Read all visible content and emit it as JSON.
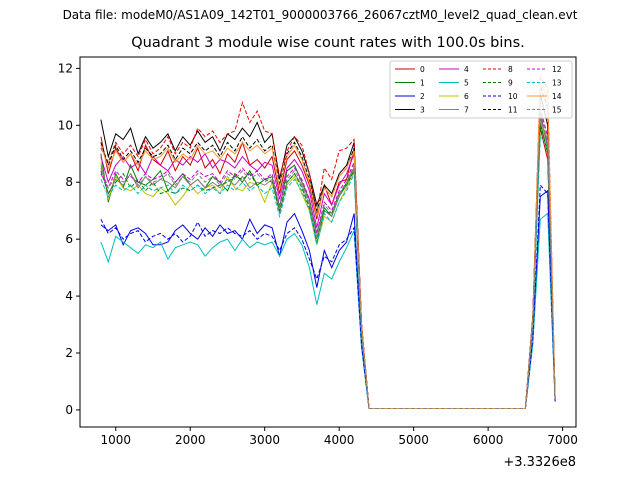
{
  "figure": {
    "suptitle": "Data file: modeM0/AS1A09_142T01_9000003766_26067cztM0_level2_quad_clean.evt",
    "title": "Quadrant 3 module wise count rates with 100.0s bins.",
    "x_offset_label": "+3.3326e8"
  },
  "chart_data": {
    "type": "line",
    "title": "Quadrant 3 module wise count rates with 100.0s bins.",
    "xlabel": "",
    "ylabel": "",
    "x_offset": 333260000,
    "xlim": [
      520,
      7180
    ],
    "ylim": [
      -0.6,
      12.4
    ],
    "xticks": [
      1000,
      2000,
      3000,
      4000,
      5000,
      6000,
      7000
    ],
    "yticks": [
      0,
      2,
      4,
      6,
      8,
      10,
      12
    ],
    "grid": false,
    "legend": {
      "placement": "top-right",
      "columns": 4,
      "entries": [
        "0",
        "1",
        "2",
        "3",
        "4",
        "5",
        "6",
        "7",
        "8",
        "9",
        "10",
        "11",
        "12",
        "13",
        "14",
        "15"
      ]
    },
    "x": [
      800,
      900,
      1000,
      1100,
      1200,
      1300,
      1400,
      1500,
      1600,
      1700,
      1800,
      1900,
      2000,
      2100,
      2200,
      2300,
      2400,
      2500,
      2600,
      2700,
      2800,
      2900,
      3000,
      3100,
      3200,
      3300,
      3400,
      3500,
      3600,
      3700,
      3800,
      3900,
      4000,
      4100,
      4200,
      4300,
      4400,
      4500,
      4600,
      4700,
      4800,
      4900,
      5000,
      5100,
      5200,
      5300,
      5400,
      5500,
      5600,
      5700,
      5800,
      5900,
      6000,
      6100,
      6200,
      6300,
      6400,
      6500,
      6600,
      6700,
      6800,
      6900
    ],
    "series": [
      {
        "name": "0",
        "color": "#cc0000",
        "dash": "solid",
        "values": [
          9.6,
          8.3,
          9.2,
          8.7,
          9.0,
          8.4,
          9.3,
          8.8,
          8.6,
          9.1,
          8.4,
          8.9,
          8.6,
          9.2,
          8.5,
          8.8,
          8.3,
          9.0,
          8.7,
          9.4,
          8.6,
          8.8,
          8.5,
          8.9,
          7.6,
          8.8,
          9.1,
          8.6,
          7.9,
          6.7,
          7.9,
          7.2,
          8.0,
          8.1,
          9.2,
          3.0,
          0.05,
          0.05,
          0.05,
          0.05,
          0.05,
          0.05,
          0.05,
          0.05,
          0.05,
          0.05,
          0.05,
          0.05,
          0.05,
          0.05,
          0.05,
          0.05,
          0.05,
          0.05,
          0.05,
          0.05,
          0.05,
          0.05,
          3.2,
          9.9,
          8.8,
          0.4
        ]
      },
      {
        "name": "1",
        "color": "#008000",
        "dash": "solid",
        "values": [
          9.0,
          7.3,
          8.3,
          7.8,
          8.6,
          8.0,
          7.9,
          8.1,
          8.4,
          7.7,
          8.0,
          8.3,
          7.9,
          8.1,
          7.8,
          8.2,
          8.0,
          7.7,
          8.3,
          8.0,
          8.4,
          7.9,
          8.1,
          8.2,
          7.1,
          8.4,
          8.6,
          8.0,
          7.4,
          6.2,
          7.1,
          6.8,
          7.5,
          8.0,
          8.5,
          2.9,
          0.05,
          0.05,
          0.05,
          0.05,
          0.05,
          0.05,
          0.05,
          0.05,
          0.05,
          0.05,
          0.05,
          0.05,
          0.05,
          0.05,
          0.05,
          0.05,
          0.05,
          0.05,
          0.05,
          0.05,
          0.05,
          0.05,
          3.0,
          10.1,
          9.0,
          0.4
        ]
      },
      {
        "name": "2",
        "color": "#0000ee",
        "dash": "solid",
        "values": [
          6.5,
          6.3,
          6.5,
          5.8,
          6.3,
          6.4,
          6.2,
          5.8,
          5.8,
          5.9,
          6.3,
          6.5,
          6.2,
          6.0,
          6.4,
          6.1,
          6.5,
          6.2,
          6.3,
          6.0,
          6.7,
          6.2,
          6.5,
          6.4,
          5.4,
          6.6,
          6.9,
          6.3,
          5.6,
          4.3,
          5.6,
          5.0,
          5.6,
          5.9,
          6.9,
          2.3,
          0.05,
          0.05,
          0.05,
          0.05,
          0.05,
          0.05,
          0.05,
          0.05,
          0.05,
          0.05,
          0.05,
          0.05,
          0.05,
          0.05,
          0.05,
          0.05,
          0.05,
          0.05,
          0.05,
          0.05,
          0.05,
          0.05,
          2.4,
          7.5,
          7.7,
          0.3
        ]
      },
      {
        "name": "3",
        "color": "#000000",
        "dash": "solid",
        "values": [
          10.2,
          8.9,
          9.7,
          9.5,
          9.9,
          9.0,
          9.6,
          9.2,
          9.4,
          9.7,
          9.1,
          9.6,
          9.3,
          9.8,
          9.4,
          9.6,
          9.1,
          9.7,
          9.5,
          9.9,
          9.6,
          10.1,
          9.4,
          9.7,
          8.1,
          9.3,
          9.6,
          9.1,
          8.3,
          7.2,
          7.9,
          7.6,
          8.3,
          8.6,
          9.4,
          3.0,
          0.05,
          0.05,
          0.05,
          0.05,
          0.05,
          0.05,
          0.05,
          0.05,
          0.05,
          0.05,
          0.05,
          0.05,
          0.05,
          0.05,
          0.05,
          0.05,
          0.05,
          0.05,
          0.05,
          0.05,
          0.05,
          0.05,
          3.3,
          11.1,
          10.0,
          0.4
        ]
      },
      {
        "name": "4",
        "color": "#cc00cc",
        "dash": "solid",
        "values": [
          8.9,
          8.0,
          8.6,
          8.9,
          8.5,
          8.7,
          8.3,
          8.9,
          8.6,
          8.4,
          8.8,
          8.6,
          8.9,
          8.7,
          9.0,
          8.5,
          8.8,
          8.7,
          8.5,
          8.9,
          8.6,
          8.4,
          8.7,
          8.6,
          7.4,
          8.5,
          8.8,
          8.4,
          7.7,
          6.4,
          7.6,
          7.2,
          7.9,
          8.3,
          9.0,
          2.9,
          0.05,
          0.05,
          0.05,
          0.05,
          0.05,
          0.05,
          0.05,
          0.05,
          0.05,
          0.05,
          0.05,
          0.05,
          0.05,
          0.05,
          0.05,
          0.05,
          0.05,
          0.05,
          0.05,
          0.05,
          0.05,
          0.05,
          3.1,
          10.4,
          9.3,
          0.4
        ]
      },
      {
        "name": "5",
        "color": "#00bfbf",
        "dash": "solid",
        "values": [
          5.9,
          5.2,
          6.1,
          5.9,
          5.7,
          5.5,
          5.8,
          5.7,
          5.9,
          5.3,
          5.7,
          5.8,
          5.9,
          5.8,
          5.4,
          5.7,
          5.9,
          6.0,
          5.6,
          6.0,
          5.7,
          5.9,
          5.8,
          5.9,
          5.4,
          6.0,
          6.2,
          5.8,
          5.0,
          3.7,
          4.8,
          4.6,
          5.2,
          5.7,
          6.3,
          2.2,
          0.05,
          0.05,
          0.05,
          0.05,
          0.05,
          0.05,
          0.05,
          0.05,
          0.05,
          0.05,
          0.05,
          0.05,
          0.05,
          0.05,
          0.05,
          0.05,
          0.05,
          0.05,
          0.05,
          0.05,
          0.05,
          0.05,
          2.3,
          6.7,
          6.9,
          0.3
        ]
      },
      {
        "name": "6",
        "color": "#bfbf00",
        "dash": "solid",
        "values": [
          8.7,
          7.4,
          8.2,
          7.8,
          7.7,
          7.9,
          7.6,
          7.5,
          7.8,
          7.6,
          7.2,
          7.5,
          7.9,
          7.6,
          7.8,
          7.9,
          7.6,
          8.2,
          7.8,
          7.7,
          8.0,
          7.9,
          7.3,
          8.0,
          7.0,
          7.9,
          8.2,
          7.6,
          7.0,
          5.8,
          6.8,
          6.6,
          7.3,
          7.8,
          8.4,
          2.8,
          0.05,
          0.05,
          0.05,
          0.05,
          0.05,
          0.05,
          0.05,
          0.05,
          0.05,
          0.05,
          0.05,
          0.05,
          0.05,
          0.05,
          0.05,
          0.05,
          0.05,
          0.05,
          0.05,
          0.05,
          0.05,
          0.05,
          3.0,
          10.2,
          9.5,
          0.4
        ]
      },
      {
        "name": "7",
        "color": "#808080",
        "dash": "solid",
        "values": [
          8.6,
          7.6,
          8.1,
          7.9,
          8.3,
          7.8,
          8.2,
          7.9,
          8.1,
          8.0,
          7.8,
          8.2,
          7.9,
          8.1,
          7.8,
          8.0,
          7.8,
          8.1,
          7.9,
          8.2,
          7.8,
          8.0,
          7.9,
          8.1,
          6.9,
          8.0,
          8.3,
          7.9,
          7.2,
          6.0,
          7.0,
          6.8,
          7.5,
          7.9,
          8.5,
          2.8,
          0.05,
          0.05,
          0.05,
          0.05,
          0.05,
          0.05,
          0.05,
          0.05,
          0.05,
          0.05,
          0.05,
          0.05,
          0.05,
          0.05,
          0.05,
          0.05,
          0.05,
          0.05,
          0.05,
          0.05,
          0.05,
          0.05,
          3.0,
          10.3,
          9.2,
          0.4
        ]
      },
      {
        "name": "8",
        "color": "#ee0000",
        "dash": "dashed",
        "values": [
          9.2,
          8.7,
          9.4,
          9.0,
          9.3,
          8.9,
          9.5,
          9.0,
          9.2,
          9.6,
          9.0,
          9.4,
          9.2,
          9.9,
          9.6,
          9.8,
          9.4,
          9.7,
          9.8,
          10.8,
          10.1,
          10.5,
          9.8,
          9.7,
          8.2,
          9.1,
          9.6,
          9.3,
          8.3,
          6.9,
          8.5,
          8.1,
          9.1,
          9.2,
          9.5,
          3.1,
          0.05,
          0.05,
          0.05,
          0.05,
          0.05,
          0.05,
          0.05,
          0.05,
          0.05,
          0.05,
          0.05,
          0.05,
          0.05,
          0.05,
          0.05,
          0.05,
          0.05,
          0.05,
          0.05,
          0.05,
          0.05,
          0.05,
          3.3,
          11.7,
          11.3,
          0.4
        ]
      },
      {
        "name": "9",
        "color": "#008000",
        "dash": "dashed",
        "values": [
          8.4,
          7.6,
          8.0,
          8.3,
          7.8,
          8.1,
          7.7,
          8.0,
          7.6,
          7.7,
          7.6,
          7.8,
          7.7,
          7.9,
          7.7,
          7.8,
          7.9,
          8.0,
          8.2,
          8.1,
          8.3,
          7.9,
          8.1,
          8.0,
          7.0,
          8.0,
          8.3,
          7.8,
          7.1,
          5.9,
          7.0,
          6.9,
          7.6,
          7.9,
          8.4,
          2.8,
          0.05,
          0.05,
          0.05,
          0.05,
          0.05,
          0.05,
          0.05,
          0.05,
          0.05,
          0.05,
          0.05,
          0.05,
          0.05,
          0.05,
          0.05,
          0.05,
          0.05,
          0.05,
          0.05,
          0.05,
          0.05,
          0.05,
          3.0,
          10.0,
          9.1,
          0.4
        ]
      },
      {
        "name": "10",
        "color": "#0000ee",
        "dash": "dashed",
        "values": [
          6.7,
          6.2,
          6.4,
          6.0,
          6.2,
          6.3,
          5.9,
          6.1,
          6.2,
          6.0,
          6.2,
          5.9,
          6.1,
          6.6,
          6.1,
          6.3,
          6.2,
          6.4,
          6.2,
          6.1,
          6.3,
          6.0,
          6.2,
          6.1,
          5.6,
          6.2,
          6.4,
          6.0,
          5.3,
          4.6,
          5.4,
          5.2,
          5.8,
          6.0,
          6.4,
          2.3,
          0.05,
          0.05,
          0.05,
          0.05,
          0.05,
          0.05,
          0.05,
          0.05,
          0.05,
          0.05,
          0.05,
          0.05,
          0.05,
          0.05,
          0.05,
          0.05,
          0.05,
          0.05,
          0.05,
          0.05,
          0.05,
          0.05,
          2.5,
          7.9,
          7.6,
          0.3
        ]
      },
      {
        "name": "11",
        "color": "#000000",
        "dash": "dashed",
        "values": [
          9.4,
          8.6,
          9.3,
          8.8,
          9.1,
          8.7,
          9.2,
          8.9,
          9.0,
          9.3,
          8.8,
          9.2,
          9.0,
          9.4,
          9.1,
          9.3,
          8.9,
          9.4,
          9.1,
          9.6,
          9.2,
          9.5,
          9.1,
          9.3,
          7.9,
          9.0,
          9.4,
          8.9,
          8.1,
          7.0,
          7.8,
          7.5,
          8.2,
          8.5,
          9.2,
          3.0,
          0.05,
          0.05,
          0.05,
          0.05,
          0.05,
          0.05,
          0.05,
          0.05,
          0.05,
          0.05,
          0.05,
          0.05,
          0.05,
          0.05,
          0.05,
          0.05,
          0.05,
          0.05,
          0.05,
          0.05,
          0.05,
          0.05,
          3.2,
          11.4,
          10.6,
          0.4
        ]
      },
      {
        "name": "12",
        "color": "#cc00cc",
        "dash": "dashed",
        "values": [
          8.3,
          7.8,
          8.4,
          8.1,
          8.2,
          8.0,
          8.3,
          8.1,
          8.2,
          8.4,
          8.0,
          8.3,
          8.1,
          8.4,
          8.2,
          8.3,
          8.0,
          8.4,
          8.2,
          8.5,
          8.2,
          8.4,
          8.1,
          8.3,
          7.2,
          8.2,
          8.5,
          8.1,
          7.4,
          6.2,
          7.3,
          7.0,
          7.7,
          8.1,
          8.7,
          2.9,
          0.05,
          0.05,
          0.05,
          0.05,
          0.05,
          0.05,
          0.05,
          0.05,
          0.05,
          0.05,
          0.05,
          0.05,
          0.05,
          0.05,
          0.05,
          0.05,
          0.05,
          0.05,
          0.05,
          0.05,
          0.05,
          0.05,
          3.1,
          10.6,
          9.6,
          0.4
        ]
      },
      {
        "name": "13",
        "color": "#00bfbf",
        "dash": "dashed",
        "values": [
          8.1,
          7.5,
          7.9,
          7.7,
          7.9,
          7.6,
          7.9,
          7.7,
          7.8,
          7.9,
          7.6,
          7.9,
          7.7,
          7.9,
          7.6,
          7.8,
          7.6,
          7.9,
          7.7,
          8.0,
          7.7,
          7.9,
          7.6,
          7.8,
          6.8,
          7.8,
          8.1,
          7.7,
          7.0,
          5.8,
          6.9,
          6.6,
          7.3,
          7.7,
          8.3,
          2.8,
          0.05,
          0.05,
          0.05,
          0.05,
          0.05,
          0.05,
          0.05,
          0.05,
          0.05,
          0.05,
          0.05,
          0.05,
          0.05,
          0.05,
          0.05,
          0.05,
          0.05,
          0.05,
          0.05,
          0.05,
          0.05,
          0.05,
          3.0,
          9.6,
          9.3,
          0.4
        ]
      },
      {
        "name": "14",
        "color": "#ff9933",
        "dash": "solid",
        "values": [
          9.3,
          8.5,
          9.1,
          8.7,
          9.0,
          8.6,
          9.1,
          8.8,
          8.9,
          9.2,
          8.7,
          9.0,
          8.8,
          9.3,
          9.0,
          9.1,
          8.8,
          9.2,
          9.0,
          9.4,
          9.1,
          9.3,
          9.0,
          9.2,
          7.8,
          8.9,
          9.3,
          8.8,
          8.0,
          6.8,
          7.8,
          7.5,
          8.2,
          8.5,
          9.1,
          3.0,
          0.05,
          0.05,
          0.05,
          0.05,
          0.05,
          0.05,
          0.05,
          0.05,
          0.05,
          0.05,
          0.05,
          0.05,
          0.05,
          0.05,
          0.05,
          0.05,
          0.05,
          0.05,
          0.05,
          0.05,
          0.05,
          0.05,
          3.2,
          11.5,
          11.0,
          0.4
        ]
      },
      {
        "name": "15",
        "color": "#808080",
        "dash": "dashed",
        "values": [
          8.5,
          7.8,
          8.2,
          8.0,
          8.3,
          7.9,
          8.2,
          8.0,
          8.1,
          8.3,
          7.9,
          8.2,
          8.0,
          8.3,
          8.0,
          8.2,
          7.9,
          8.3,
          8.1,
          8.4,
          8.1,
          8.3,
          8.0,
          8.2,
          7.1,
          8.1,
          8.4,
          8.0,
          7.3,
          6.1,
          7.2,
          6.9,
          7.6,
          8.0,
          8.6,
          2.8,
          0.05,
          0.05,
          0.05,
          0.05,
          0.05,
          0.05,
          0.05,
          0.05,
          0.05,
          0.05,
          0.05,
          0.05,
          0.05,
          0.05,
          0.05,
          0.05,
          0.05,
          0.05,
          0.05,
          0.05,
          0.05,
          0.05,
          3.1,
          10.5,
          9.4,
          0.4
        ]
      }
    ]
  }
}
